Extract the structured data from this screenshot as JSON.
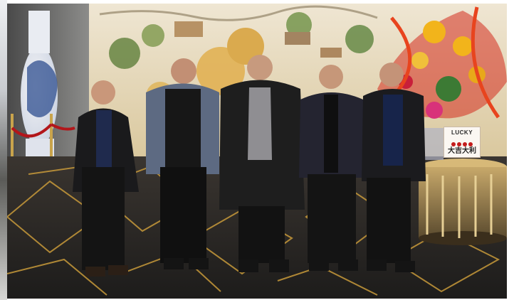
{
  "scene": {
    "kind": "group-photo",
    "people_count": 5
  },
  "sign": {
    "english": "LUCKY",
    "chinese": "大吉大利"
  },
  "palette": {
    "floor": "#2a2826",
    "floor_gold": "#c89a3a",
    "mural": "#e9dcc1",
    "flower_red": "#d42b1e",
    "flower_yellow": "#f2b41b"
  }
}
